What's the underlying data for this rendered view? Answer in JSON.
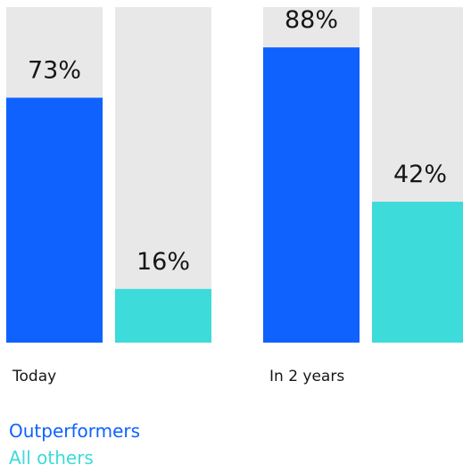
{
  "chart_data": {
    "type": "bar",
    "categories": [
      "Today",
      "In 2 years"
    ],
    "series": [
      {
        "name": "Outperformers",
        "color": "#0f62fe",
        "values": [
          73,
          88
        ],
        "value_labels": [
          "73%",
          "88%"
        ]
      },
      {
        "name": "All others",
        "color": "#3ddbd9",
        "values": [
          16,
          42
        ],
        "value_labels": [
          "16%",
          "42%"
        ]
      }
    ],
    "track_color": "#e8e8e8",
    "ylim": [
      0,
      100
    ]
  }
}
